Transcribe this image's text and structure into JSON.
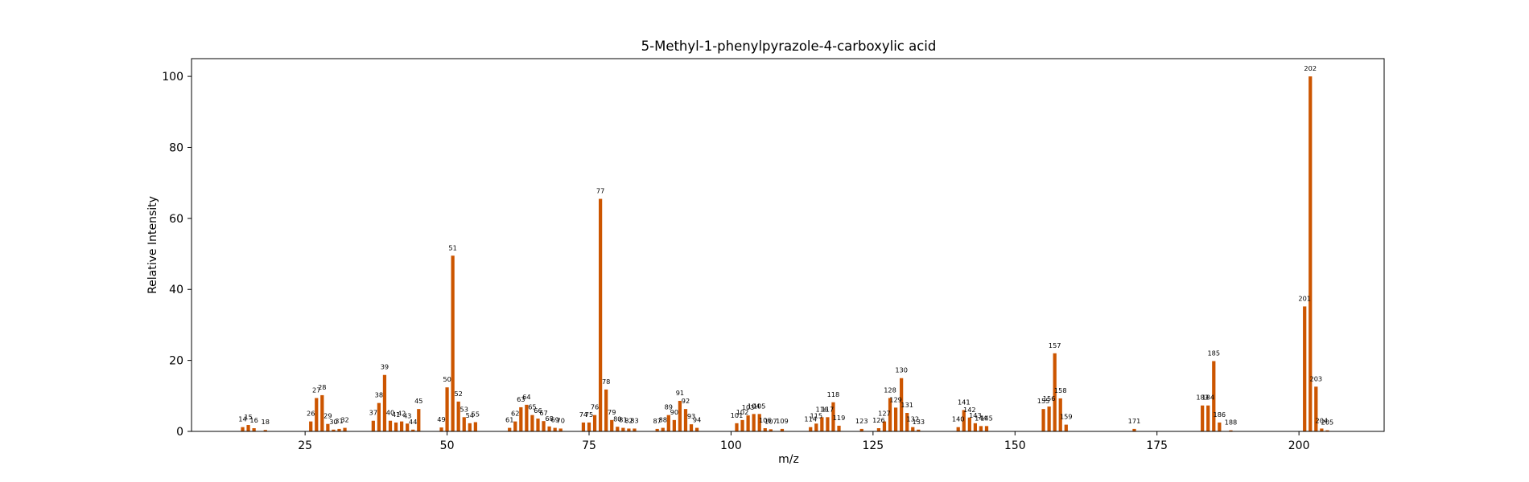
{
  "chart_data": {
    "type": "bar",
    "title": "5-Methyl-1-phenylpyrazole-4-carboxylic acid",
    "xlabel": "m/z",
    "ylabel": "Relative Intensity",
    "xlim": [
      5,
      215
    ],
    "ylim": [
      0,
      105
    ],
    "x_ticks": [
      25,
      50,
      75,
      100,
      125,
      150,
      175,
      200
    ],
    "y_ticks": [
      0,
      20,
      40,
      60,
      80,
      100
    ],
    "grid": false,
    "bar_color": "#cc5500",
    "points": [
      {
        "x": 14,
        "y": 1.2
      },
      {
        "x": 15,
        "y": 1.8
      },
      {
        "x": 16,
        "y": 0.9
      },
      {
        "x": 18,
        "y": 0.4
      },
      {
        "x": 26,
        "y": 2.8
      },
      {
        "x": 27,
        "y": 9.4
      },
      {
        "x": 28,
        "y": 10.2
      },
      {
        "x": 29,
        "y": 2.1
      },
      {
        "x": 30,
        "y": 0.5
      },
      {
        "x": 31,
        "y": 0.7
      },
      {
        "x": 32,
        "y": 1.0
      },
      {
        "x": 37,
        "y": 3.0
      },
      {
        "x": 38,
        "y": 8.0
      },
      {
        "x": 39,
        "y": 15.9
      },
      {
        "x": 40,
        "y": 3.0
      },
      {
        "x": 41,
        "y": 2.5
      },
      {
        "x": 42,
        "y": 2.8
      },
      {
        "x": 43,
        "y": 2.2
      },
      {
        "x": 44,
        "y": 0.5
      },
      {
        "x": 45,
        "y": 6.3
      },
      {
        "x": 49,
        "y": 1.1
      },
      {
        "x": 50,
        "y": 12.4
      },
      {
        "x": 51,
        "y": 49.5
      },
      {
        "x": 52,
        "y": 8.4
      },
      {
        "x": 53,
        "y": 4.0
      },
      {
        "x": 54,
        "y": 2.3
      },
      {
        "x": 55,
        "y": 2.6
      },
      {
        "x": 61,
        "y": 1.0
      },
      {
        "x": 62,
        "y": 2.8
      },
      {
        "x": 63,
        "y": 6.8
      },
      {
        "x": 64,
        "y": 7.5
      },
      {
        "x": 65,
        "y": 4.6
      },
      {
        "x": 66,
        "y": 3.6
      },
      {
        "x": 67,
        "y": 2.9
      },
      {
        "x": 68,
        "y": 1.4
      },
      {
        "x": 69,
        "y": 1.0
      },
      {
        "x": 70,
        "y": 0.8
      },
      {
        "x": 74,
        "y": 2.5
      },
      {
        "x": 75,
        "y": 2.5
      },
      {
        "x": 76,
        "y": 4.6
      },
      {
        "x": 77,
        "y": 65.5
      },
      {
        "x": 78,
        "y": 11.8
      },
      {
        "x": 79,
        "y": 3.2
      },
      {
        "x": 80,
        "y": 1.3
      },
      {
        "x": 81,
        "y": 1.0
      },
      {
        "x": 82,
        "y": 0.8
      },
      {
        "x": 83,
        "y": 0.8
      },
      {
        "x": 87,
        "y": 0.7
      },
      {
        "x": 88,
        "y": 1.0
      },
      {
        "x": 89,
        "y": 4.6
      },
      {
        "x": 90,
        "y": 3.2
      },
      {
        "x": 91,
        "y": 8.6
      },
      {
        "x": 92,
        "y": 6.3
      },
      {
        "x": 93,
        "y": 2.0
      },
      {
        "x": 94,
        "y": 1.0
      },
      {
        "x": 101,
        "y": 2.3
      },
      {
        "x": 102,
        "y": 3.2
      },
      {
        "x": 103,
        "y": 4.5
      },
      {
        "x": 104,
        "y": 4.9
      },
      {
        "x": 105,
        "y": 4.9
      },
      {
        "x": 106,
        "y": 0.9
      },
      {
        "x": 107,
        "y": 0.6
      },
      {
        "x": 109,
        "y": 0.7
      },
      {
        "x": 114,
        "y": 1.2
      },
      {
        "x": 115,
        "y": 2.2
      },
      {
        "x": 116,
        "y": 4.0
      },
      {
        "x": 117,
        "y": 4.0
      },
      {
        "x": 118,
        "y": 8.2
      },
      {
        "x": 119,
        "y": 1.6
      },
      {
        "x": 123,
        "y": 0.7
      },
      {
        "x": 126,
        "y": 0.9
      },
      {
        "x": 127,
        "y": 2.8
      },
      {
        "x": 128,
        "y": 9.4
      },
      {
        "x": 129,
        "y": 6.7
      },
      {
        "x": 130,
        "y": 15.0
      },
      {
        "x": 131,
        "y": 5.2
      },
      {
        "x": 132,
        "y": 1.2
      },
      {
        "x": 133,
        "y": 0.5
      },
      {
        "x": 140,
        "y": 1.2
      },
      {
        "x": 141,
        "y": 6.0
      },
      {
        "x": 142,
        "y": 3.9
      },
      {
        "x": 143,
        "y": 2.3
      },
      {
        "x": 144,
        "y": 1.5
      },
      {
        "x": 145,
        "y": 1.5
      },
      {
        "x": 155,
        "y": 6.3
      },
      {
        "x": 156,
        "y": 7.0
      },
      {
        "x": 157,
        "y": 22.0
      },
      {
        "x": 158,
        "y": 9.3
      },
      {
        "x": 159,
        "y": 1.9
      },
      {
        "x": 171,
        "y": 0.7
      },
      {
        "x": 183,
        "y": 7.3
      },
      {
        "x": 184,
        "y": 7.3
      },
      {
        "x": 185,
        "y": 19.8
      },
      {
        "x": 186,
        "y": 2.5
      },
      {
        "x": 188,
        "y": 0.3
      },
      {
        "x": 201,
        "y": 35.2
      },
      {
        "x": 202,
        "y": 100.0
      },
      {
        "x": 203,
        "y": 12.6
      },
      {
        "x": 204,
        "y": 0.8
      },
      {
        "x": 205,
        "y": 0.3
      }
    ]
  }
}
